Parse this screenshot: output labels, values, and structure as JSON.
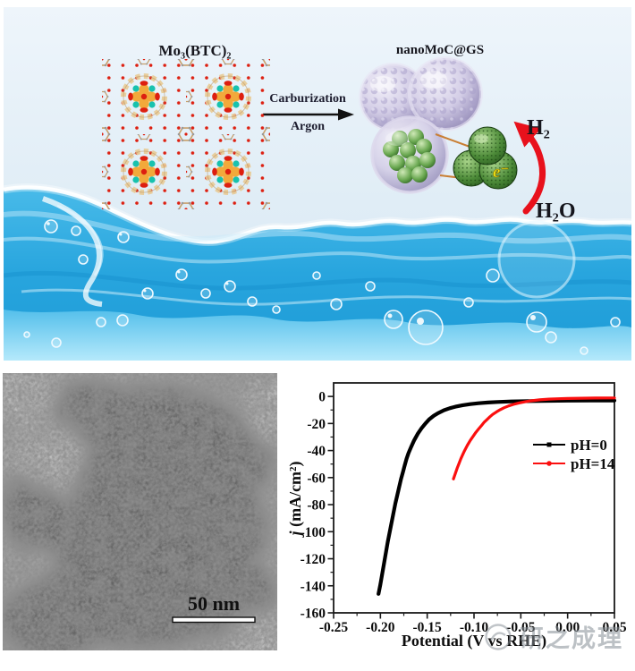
{
  "scheme": {
    "mof_label": "Mo₃(BTC)₂",
    "product_label": "nanoMoC@GS",
    "arrow_top_label": "Carburization",
    "arrow_bottom_label": "Argon",
    "h2_label": "H₂",
    "h2o_label": "H₂O",
    "electron_label": "e⁻"
  },
  "tem": {
    "scale_bar_label": "50 nm"
  },
  "watermark": {
    "text": "研之成理"
  },
  "colors": {
    "water_main": "#2fadе3",
    "accent_red_arrow": "#e8111c",
    "series_black": "#000000",
    "series_red": "#fb0f0f"
  },
  "chart_data": {
    "type": "line",
    "title": "",
    "xlabel": "Potential (V vs RHE)",
    "ylabel": "j (mA/cm²)",
    "ylabel_italic": "j",
    "ylabel_unit": " (mA/cm²)",
    "xlim": [
      -0.25,
      0.05
    ],
    "ylim": [
      -160,
      10
    ],
    "grid": false,
    "legend_position": "center-right",
    "x_ticks": [
      "-0.25",
      "-0.20",
      "-0.15",
      "-0.10",
      "-0.05",
      "0.00",
      "0.05"
    ],
    "y_ticks": [
      "0",
      "-20",
      "-40",
      "-60",
      "-80",
      "-100",
      "-120",
      "-140",
      "-160"
    ],
    "series": [
      {
        "name": "pH=0",
        "color": "#000000",
        "marker": "square",
        "points": [
          [
            -0.202,
            -146
          ],
          [
            -0.2,
            -139
          ],
          [
            -0.198,
            -131
          ],
          [
            -0.196,
            -123
          ],
          [
            -0.194,
            -115
          ],
          [
            -0.192,
            -107
          ],
          [
            -0.19,
            -100
          ],
          [
            -0.188,
            -93
          ],
          [
            -0.186,
            -86
          ],
          [
            -0.184,
            -79
          ],
          [
            -0.182,
            -73
          ],
          [
            -0.18,
            -67
          ],
          [
            -0.178,
            -61
          ],
          [
            -0.176,
            -56
          ],
          [
            -0.174,
            -51
          ],
          [
            -0.172,
            -46
          ],
          [
            -0.17,
            -42
          ],
          [
            -0.167,
            -37
          ],
          [
            -0.164,
            -32.5
          ],
          [
            -0.16,
            -27.5
          ],
          [
            -0.156,
            -23.5
          ],
          [
            -0.152,
            -20
          ],
          [
            -0.148,
            -17
          ],
          [
            -0.143,
            -14.3
          ],
          [
            -0.138,
            -12.2
          ],
          [
            -0.132,
            -10.2
          ],
          [
            -0.126,
            -8.7
          ],
          [
            -0.12,
            -7.6
          ],
          [
            -0.112,
            -6.5
          ],
          [
            -0.104,
            -5.7
          ],
          [
            -0.095,
            -5
          ],
          [
            -0.085,
            -4.5
          ],
          [
            -0.075,
            -4.1
          ],
          [
            -0.06,
            -3.7
          ],
          [
            -0.04,
            -3.4
          ],
          [
            -0.02,
            -3.2
          ],
          [
            0,
            -3.1
          ],
          [
            0.025,
            -3
          ],
          [
            0.05,
            -3
          ]
        ]
      },
      {
        "name": "pH=14",
        "color": "#fb0f0f",
        "marker": "circle",
        "points": [
          [
            -0.122,
            -61
          ],
          [
            -0.12,
            -57
          ],
          [
            -0.118,
            -53
          ],
          [
            -0.116,
            -49.5
          ],
          [
            -0.114,
            -46
          ],
          [
            -0.112,
            -43
          ],
          [
            -0.11,
            -40
          ],
          [
            -0.107,
            -36
          ],
          [
            -0.104,
            -32.5
          ],
          [
            -0.101,
            -29.5
          ],
          [
            -0.098,
            -26.5
          ],
          [
            -0.095,
            -24
          ],
          [
            -0.092,
            -21.5
          ],
          [
            -0.089,
            -19
          ],
          [
            -0.086,
            -17
          ],
          [
            -0.083,
            -15
          ],
          [
            -0.08,
            -13.3
          ],
          [
            -0.076,
            -11.4
          ],
          [
            -0.072,
            -9.8
          ],
          [
            -0.068,
            -8.4
          ],
          [
            -0.063,
            -7
          ],
          [
            -0.058,
            -5.9
          ],
          [
            -0.052,
            -4.8
          ],
          [
            -0.046,
            -4
          ],
          [
            -0.04,
            -3.3
          ],
          [
            -0.03,
            -2.5
          ],
          [
            -0.02,
            -2
          ],
          [
            -0.01,
            -1.7
          ],
          [
            0,
            -1.5
          ],
          [
            0.015,
            -1.3
          ],
          [
            0.03,
            -1.2
          ],
          [
            0.05,
            -1.1
          ]
        ]
      }
    ]
  }
}
